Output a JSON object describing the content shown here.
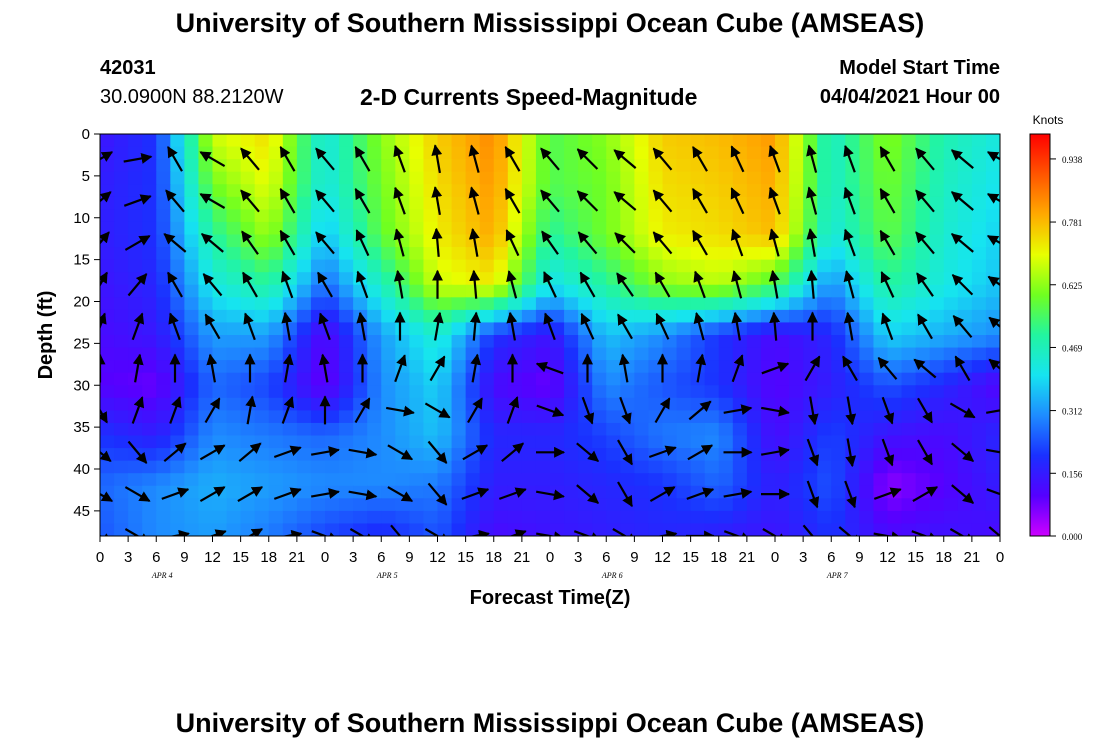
{
  "header": {
    "title": "University of Southern Mississippi Ocean Cube (AMSEAS)",
    "station_id": "42031",
    "station_coords": "30.0900N  88.2120W",
    "plot_title": "2-D Currents Speed-Magnitude",
    "model_start_label": "Model Start Time",
    "model_start_value": "04/04/2021 Hour 00"
  },
  "footer": {
    "title": "University of Southern Mississippi Ocean Cube (AMSEAS)"
  },
  "chart_data": {
    "type": "heatmap",
    "title": "2-D Currents Speed-Magnitude",
    "xlabel": "Forecast Time(Z)",
    "ylabel": "Depth (ft)",
    "x_tick_labels": [
      "0",
      "3",
      "6",
      "9",
      "12",
      "15",
      "18",
      "21",
      "0",
      "3",
      "6",
      "9",
      "12",
      "15",
      "18",
      "21",
      "0",
      "3",
      "6",
      "9",
      "12",
      "15",
      "18",
      "21",
      "0",
      "3",
      "6",
      "9",
      "12",
      "15",
      "18",
      "21",
      "0"
    ],
    "x_range_hours": [
      0,
      96
    ],
    "day_labels": [
      {
        "label": "APR 4",
        "hour": 6
      },
      {
        "label": "APR 5",
        "hour": 30
      },
      {
        "label": "APR 6",
        "hour": 54
      },
      {
        "label": "APR 7",
        "hour": 78
      }
    ],
    "y_ticks": [
      0,
      5,
      10,
      15,
      20,
      25,
      30,
      35,
      40,
      45
    ],
    "y_range": [
      0,
      48
    ],
    "colorbar": {
      "unit": "Knots",
      "tick_labels": [
        "0.000",
        "0.156",
        "0.312",
        "0.469",
        "0.625",
        "0.781",
        "0.938"
      ],
      "ticks": [
        0.0,
        0.156,
        0.312,
        0.469,
        0.625,
        0.781,
        0.938
      ],
      "range": [
        0,
        1.0
      ],
      "colors": [
        "#cc00ff",
        "#5500ff",
        "#1a30ff",
        "#1e8cff",
        "#16e4f0",
        "#22f5a0",
        "#70ff20",
        "#e8ff00",
        "#ffaa00",
        "#ff5500",
        "#ff0000"
      ]
    },
    "speed_grid_hours": [
      0,
      6,
      12,
      18,
      24,
      30,
      36,
      42,
      48,
      54,
      60,
      66,
      72,
      78,
      84,
      90,
      96
    ],
    "speed_grid_depths": [
      0,
      6,
      12,
      18,
      24,
      30,
      36,
      42,
      48
    ],
    "speed_grid": [
      [
        0.14,
        0.2,
        0.68,
        0.74,
        0.42,
        0.62,
        0.76,
        0.84,
        0.56,
        0.62,
        0.76,
        0.78,
        0.82,
        0.45,
        0.62,
        0.48,
        0.42
      ],
      [
        0.16,
        0.2,
        0.6,
        0.7,
        0.42,
        0.6,
        0.74,
        0.82,
        0.56,
        0.6,
        0.74,
        0.76,
        0.8,
        0.45,
        0.6,
        0.46,
        0.4
      ],
      [
        0.16,
        0.2,
        0.5,
        0.64,
        0.36,
        0.58,
        0.72,
        0.8,
        0.5,
        0.6,
        0.72,
        0.74,
        0.78,
        0.42,
        0.58,
        0.44,
        0.38
      ],
      [
        0.14,
        0.18,
        0.42,
        0.5,
        0.26,
        0.46,
        0.68,
        0.72,
        0.4,
        0.5,
        0.62,
        0.66,
        0.56,
        0.3,
        0.5,
        0.42,
        0.36
      ],
      [
        0.12,
        0.15,
        0.32,
        0.32,
        0.1,
        0.32,
        0.44,
        0.2,
        0.14,
        0.36,
        0.3,
        0.2,
        0.12,
        0.18,
        0.38,
        0.34,
        0.3
      ],
      [
        0.1,
        0.08,
        0.26,
        0.22,
        0.08,
        0.3,
        0.38,
        0.12,
        0.08,
        0.3,
        0.24,
        0.2,
        0.1,
        0.16,
        0.24,
        0.18,
        0.1
      ],
      [
        0.2,
        0.16,
        0.3,
        0.28,
        0.26,
        0.3,
        0.36,
        0.18,
        0.18,
        0.22,
        0.28,
        0.3,
        0.12,
        0.22,
        0.14,
        0.12,
        0.18
      ],
      [
        0.26,
        0.3,
        0.34,
        0.32,
        0.3,
        0.3,
        0.28,
        0.16,
        0.16,
        0.18,
        0.2,
        0.26,
        0.16,
        0.24,
        0.05,
        0.1,
        0.16
      ],
      [
        0.24,
        0.3,
        0.32,
        0.28,
        0.22,
        0.18,
        0.24,
        0.12,
        0.14,
        0.16,
        0.18,
        0.16,
        0.14,
        0.2,
        0.12,
        0.14,
        0.12
      ]
    ],
    "vector_depths": [
      1,
      6,
      11,
      16,
      21,
      26,
      31,
      36,
      41,
      46
    ],
    "vector_hours": [
      0,
      4,
      8,
      12,
      16,
      20,
      24,
      28,
      32,
      36,
      40,
      44,
      48,
      52,
      56,
      60,
      64,
      68,
      72,
      76,
      80,
      84,
      88,
      92,
      96
    ],
    "vector_directions_deg": [
      [
        60,
        80,
        330,
        300,
        320,
        330,
        320,
        330,
        340,
        350,
        345,
        330,
        320,
        315,
        310,
        320,
        330,
        335,
        340,
        345,
        340,
        330,
        320,
        310,
        300
      ],
      [
        50,
        70,
        320,
        300,
        320,
        330,
        320,
        330,
        340,
        350,
        345,
        330,
        320,
        315,
        310,
        320,
        330,
        335,
        340,
        345,
        340,
        330,
        320,
        310,
        300
      ],
      [
        40,
        60,
        310,
        310,
        325,
        330,
        320,
        335,
        345,
        355,
        350,
        335,
        325,
        320,
        315,
        320,
        330,
        340,
        345,
        350,
        340,
        330,
        320,
        310,
        300
      ],
      [
        30,
        40,
        330,
        320,
        330,
        340,
        330,
        340,
        350,
        0,
        355,
        345,
        335,
        330,
        325,
        330,
        340,
        345,
        350,
        355,
        345,
        335,
        325,
        315,
        305
      ],
      [
        20,
        20,
        340,
        330,
        340,
        350,
        340,
        350,
        0,
        10,
        5,
        350,
        340,
        335,
        330,
        335,
        345,
        350,
        355,
        0,
        350,
        340,
        330,
        320,
        310
      ],
      [
        0,
        10,
        0,
        350,
        0,
        10,
        350,
        0,
        20,
        30,
        10,
        0,
        290,
        0,
        350,
        0,
        10,
        20,
        70,
        30,
        330,
        320,
        310,
        330,
        310
      ],
      [
        150,
        20,
        20,
        30,
        10,
        20,
        0,
        30,
        100,
        120,
        30,
        20,
        110,
        160,
        160,
        30,
        50,
        80,
        100,
        170,
        170,
        160,
        150,
        120,
        80
      ],
      [
        130,
        140,
        50,
        60,
        50,
        70,
        80,
        100,
        120,
        140,
        60,
        50,
        90,
        130,
        150,
        70,
        60,
        90,
        80,
        160,
        170,
        160,
        150,
        130,
        100
      ],
      [
        120,
        120,
        70,
        60,
        60,
        70,
        80,
        100,
        120,
        140,
        70,
        70,
        100,
        130,
        150,
        60,
        70,
        80,
        90,
        160,
        160,
        70,
        60,
        130,
        110
      ],
      [
        120,
        120,
        80,
        70,
        60,
        80,
        110,
        120,
        140,
        120,
        80,
        70,
        100,
        110,
        120,
        80,
        90,
        110,
        120,
        140,
        130,
        100,
        110,
        120,
        130
      ]
    ]
  }
}
